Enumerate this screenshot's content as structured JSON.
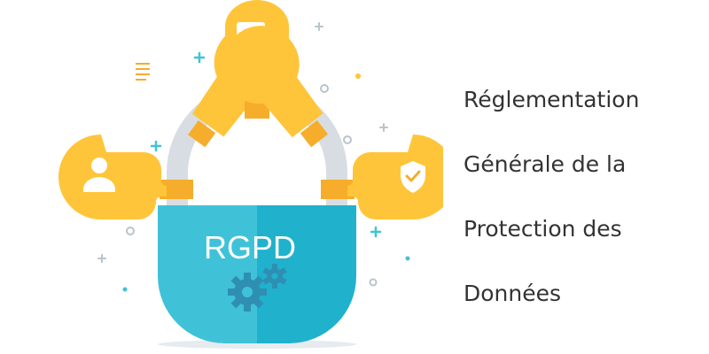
{
  "lock": {
    "label": "RGPD"
  },
  "title_lines": [
    "Réglementation",
    "Générale de la",
    "Protection des",
    "Données"
  ],
  "icons": [
    "user-icon",
    "document-icon",
    "chat-icon",
    "key-icon",
    "shield-check-icon",
    "gears-icon"
  ],
  "colors": {
    "key_yellow": "#ffc53a",
    "key_collar": "#f5ad2b",
    "shackle_gray": "#d8dde3",
    "lock_teal": "#3fc2d8",
    "lock_teal_dark": "#20b1cc",
    "gear_blue": "#2f8fb3",
    "title_text": "#333333"
  }
}
